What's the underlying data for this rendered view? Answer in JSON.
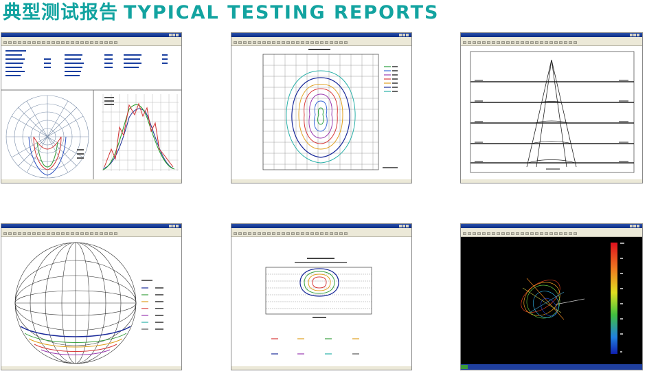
{
  "page_title_cn": "典型测试报告",
  "page_title_en": "TYPICAL TESTING REPORTS",
  "accent_color": "#12a3a0"
}
